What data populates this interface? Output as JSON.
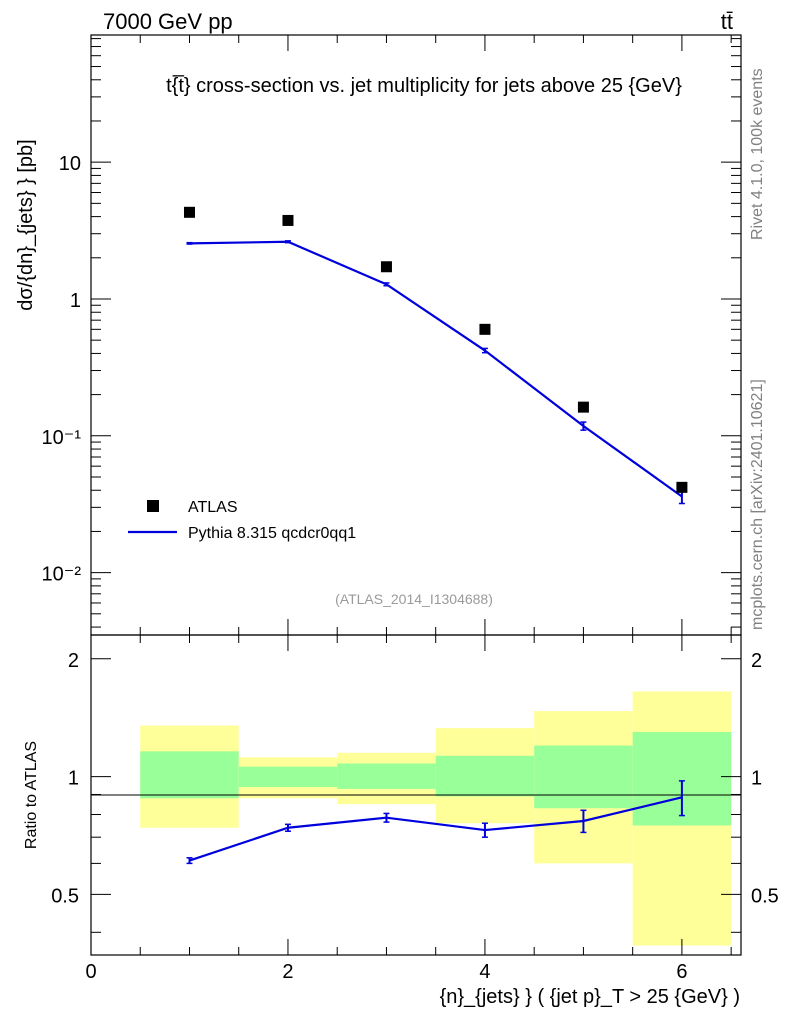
{
  "header": {
    "left": "7000 GeV pp",
    "right": "tt̄"
  },
  "side_text": {
    "rivet": "Rivet 4.1.0,  100k events",
    "mcplots": "mcplots.cern.ch [arXiv:2401.10621]"
  },
  "chart_data": [
    {
      "type": "scatter",
      "panel": "main",
      "title": "t{̅t} cross-section vs. jet multiplicity for jets above 25 {GeV}",
      "ylabel": "dσ/{dn}_{jets} } [pb]",
      "yscale": "log",
      "ylim": [
        0.0035,
        85
      ],
      "xlim": [
        0,
        6.6
      ],
      "reference_label": "(ATLAS_2014_I1304688)",
      "legend_position": "lower-left",
      "y_tick_labels": [
        "10⁻²",
        "10⁻¹",
        "1",
        "10"
      ],
      "series": [
        {
          "name": "ATLAS",
          "style": "markers",
          "color": "#000000",
          "x": [
            1,
            2,
            3,
            4,
            5,
            6
          ],
          "values": [
            4.3,
            3.75,
            1.72,
            0.6,
            0.162,
            0.042
          ]
        },
        {
          "name": "Pythia 8.315 qcdcr0qq1",
          "style": "line",
          "color": "#0000dd",
          "x": [
            1,
            2,
            3,
            4,
            5,
            6
          ],
          "values": [
            2.55,
            2.62,
            1.28,
            0.42,
            0.118,
            0.036
          ],
          "errors": [
            0.03,
            0.04,
            0.03,
            0.015,
            0.008,
            0.004
          ]
        }
      ]
    },
    {
      "type": "line",
      "panel": "ratio",
      "ylabel": "Ratio to ATLAS",
      "xlabel": "{n}_{jets} } ( {jet p}_T > 25 {GeV} )",
      "ylim": [
        0.35,
        2.3
      ],
      "xlim": [
        0,
        6.6
      ],
      "x_tick_labels": [
        "0",
        "2",
        "4",
        "6"
      ],
      "y_tick_labels": [
        "0.5",
        "1",
        "2"
      ],
      "bands": {
        "bins": [
          [
            0.5,
            1.5
          ],
          [
            1.5,
            2.5
          ],
          [
            2.5,
            3.5
          ],
          [
            3.5,
            4.5
          ],
          [
            4.5,
            5.5
          ],
          [
            5.5,
            6.5
          ]
        ],
        "inner": [
          [
            0.88,
            1.16
          ],
          [
            0.94,
            1.06
          ],
          [
            0.93,
            1.08
          ],
          [
            0.89,
            1.13
          ],
          [
            0.83,
            1.2
          ],
          [
            0.75,
            1.3
          ]
        ],
        "outer": [
          [
            0.74,
            1.35
          ],
          [
            0.88,
            1.12
          ],
          [
            0.85,
            1.15
          ],
          [
            0.76,
            1.33
          ],
          [
            0.6,
            1.47
          ],
          [
            0.37,
            1.65
          ]
        ],
        "inner_color": "#99ff99",
        "outer_color": "#ffff99"
      },
      "series": [
        {
          "name": "Pythia 8.315 qcdcr0qq1",
          "color": "#0000dd",
          "x": [
            1,
            2,
            3,
            4,
            5,
            6
          ],
          "values": [
            0.61,
            0.74,
            0.785,
            0.73,
            0.77,
            0.885
          ],
          "errors": [
            0.01,
            0.015,
            0.02,
            0.03,
            0.05,
            0.09
          ]
        }
      ]
    }
  ]
}
